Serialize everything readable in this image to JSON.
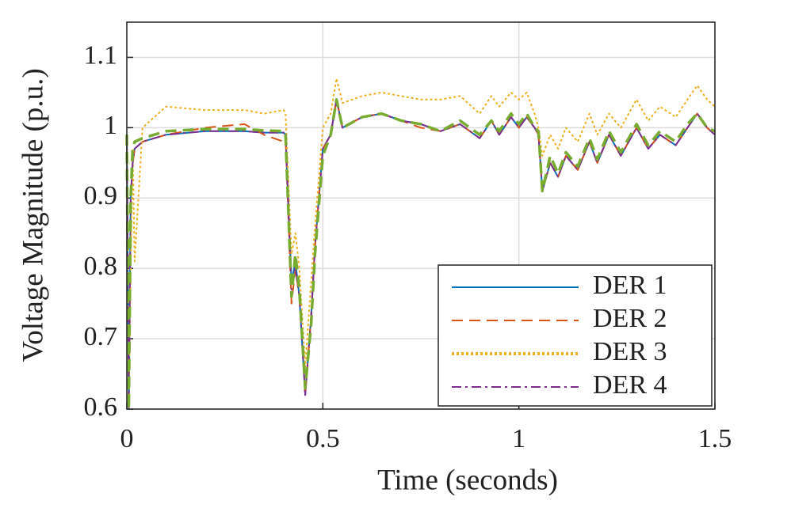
{
  "chart_data": {
    "type": "line",
    "xlabel": "Time (seconds)",
    "ylabel": "Voltage Magnitude (p.u.)",
    "x": [
      0,
      0.005,
      0.01,
      0.015,
      0.02,
      0.04,
      0.1,
      0.2,
      0.3,
      0.35,
      0.4,
      0.405,
      0.42,
      0.43,
      0.44,
      0.455,
      0.47,
      0.48,
      0.5,
      0.52,
      0.535,
      0.55,
      0.6,
      0.65,
      0.7,
      0.75,
      0.8,
      0.85,
      0.9,
      0.93,
      0.95,
      0.98,
      1.0,
      1.02,
      1.04,
      1.05,
      1.06,
      1.08,
      1.1,
      1.12,
      1.15,
      1.18,
      1.2,
      1.23,
      1.26,
      1.3,
      1.33,
      1.36,
      1.4,
      1.43,
      1.455,
      1.48,
      1.5
    ],
    "series": [
      {
        "name": "DER 1",
        "color": "#0072bd",
        "dash": "solid",
        "values": [
          0.99,
          0.6,
          0.9,
          0.95,
          0.97,
          0.98,
          0.99,
          0.995,
          0.995,
          0.993,
          0.993,
          0.99,
          0.78,
          0.81,
          0.76,
          0.62,
          0.73,
          0.83,
          0.97,
          0.99,
          1.04,
          1.0,
          1.015,
          1.02,
          1.01,
          1.005,
          0.995,
          1.005,
          0.985,
          1.01,
          0.99,
          1.015,
          1.0,
          1.015,
          1.0,
          0.99,
          0.91,
          0.95,
          0.93,
          0.96,
          0.94,
          0.98,
          0.95,
          0.99,
          0.96,
          1.0,
          0.97,
          0.99,
          0.975,
          1.0,
          1.02,
          1.0,
          0.99
        ]
      },
      {
        "name": "DER 2",
        "color": "#d95319",
        "dash": "dashed",
        "values": [
          0.99,
          0.6,
          0.9,
          0.95,
          0.97,
          0.98,
          0.99,
          1.0,
          1.005,
          0.99,
          0.98,
          0.985,
          0.75,
          0.8,
          0.76,
          0.62,
          0.73,
          0.83,
          0.97,
          0.99,
          1.04,
          1.0,
          1.015,
          1.02,
          1.01,
          1.0,
          0.995,
          1.005,
          0.985,
          1.01,
          0.99,
          1.015,
          1.0,
          1.015,
          1.0,
          0.99,
          0.91,
          0.95,
          0.93,
          0.96,
          0.94,
          0.98,
          0.95,
          0.99,
          0.96,
          1.0,
          0.97,
          0.99,
          0.975,
          1.0,
          1.02,
          1.0,
          0.99
        ]
      },
      {
        "name": "DER 3",
        "color": "#edb120",
        "dash": "dotted",
        "values": [
          0.99,
          0.6,
          0.8,
          0.97,
          0.81,
          1.0,
          1.03,
          1.025,
          1.025,
          1.02,
          1.025,
          1.02,
          0.82,
          0.85,
          0.8,
          0.66,
          0.78,
          0.86,
          1.0,
          1.02,
          1.07,
          1.035,
          1.045,
          1.05,
          1.045,
          1.04,
          1.04,
          1.045,
          1.02,
          1.045,
          1.03,
          1.05,
          1.04,
          1.05,
          1.02,
          1.0,
          0.96,
          0.99,
          0.97,
          1.0,
          0.98,
          1.02,
          0.99,
          1.02,
          1.0,
          1.04,
          1.01,
          1.03,
          1.015,
          1.04,
          1.06,
          1.04,
          1.03
        ]
      },
      {
        "name": "DER 4",
        "color": "#7e2f8e",
        "dash": "dashdot",
        "values": [
          0.99,
          0.6,
          0.9,
          0.95,
          0.97,
          0.98,
          0.99,
          0.995,
          0.995,
          0.993,
          0.993,
          0.99,
          0.77,
          0.8,
          0.76,
          0.62,
          0.73,
          0.83,
          0.97,
          0.99,
          1.04,
          1.0,
          1.015,
          1.02,
          1.01,
          1.005,
          0.995,
          1.005,
          0.985,
          1.01,
          0.99,
          1.015,
          1.0,
          1.015,
          1.0,
          0.99,
          0.91,
          0.95,
          0.93,
          0.96,
          0.94,
          0.98,
          0.95,
          0.99,
          0.96,
          1.0,
          0.97,
          0.99,
          0.975,
          1.0,
          1.02,
          1.0,
          0.99
        ]
      },
      {
        "color": "#77ac30",
        "dash": "dashed",
        "values": [
          0.99,
          0.6,
          0.9,
          0.97,
          0.98,
          0.985,
          0.995,
          0.998,
          0.998,
          0.996,
          0.995,
          0.99,
          0.76,
          0.82,
          0.77,
          0.63,
          0.72,
          0.82,
          0.96,
          0.99,
          1.04,
          1.0,
          1.015,
          1.02,
          1.01,
          1.005,
          0.995,
          1.01,
          0.99,
          1.01,
          0.995,
          1.02,
          1.005,
          1.02,
          1.0,
          0.995,
          0.91,
          0.96,
          0.935,
          0.965,
          0.945,
          0.985,
          0.955,
          0.995,
          0.965,
          1.005,
          0.975,
          0.995,
          0.98,
          1.005,
          1.02,
          1.0,
          0.995
        ]
      }
    ],
    "xlim": [
      0,
      1.5
    ],
    "xticks": [
      0,
      0.5,
      1,
      1.5
    ],
    "ylim": [
      0.6,
      1.15
    ],
    "yticks": [
      0.6,
      0.7,
      0.8,
      0.9,
      1,
      1.1
    ],
    "grid": true,
    "legend": "southeast"
  }
}
